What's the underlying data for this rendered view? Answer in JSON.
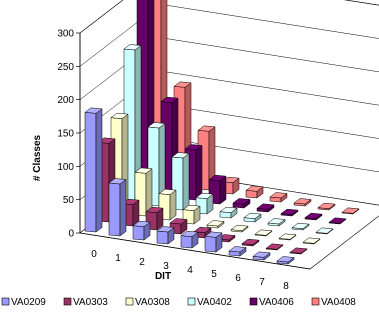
{
  "chart_data": {
    "type": "bar",
    "style": "3d-clustered-column",
    "title": "",
    "xlabel": "DIT",
    "ylabel": "# Classes",
    "ylim": [
      0,
      300
    ],
    "yticks": [
      0,
      50,
      100,
      150,
      200,
      250,
      300
    ],
    "categories": [
      "0",
      "1",
      "2",
      "3",
      "4",
      "5",
      "6",
      "7",
      "8"
    ],
    "grid": true,
    "legend_position": "bottom",
    "series": [
      {
        "name": "VA0209",
        "color": "#9999FF",
        "values": [
          178,
          78,
          20,
          18,
          17,
          22,
          6,
          4,
          3
        ]
      },
      {
        "name": "VA0303",
        "color": "#993366",
        "values": [
          118,
          32,
          26,
          15,
          8,
          3,
          2,
          1,
          1
        ]
      },
      {
        "name": "VA0308",
        "color": "#FFFFCC",
        "values": [
          140,
          64,
          38,
          20,
          3,
          2,
          1,
          1,
          1
        ]
      },
      {
        "name": "VA0402",
        "color": "#CCFFFF",
        "values": [
          228,
          117,
          78,
          23,
          8,
          5,
          3,
          2,
          1
        ]
      },
      {
        "name": "VA0406",
        "color": "#660066",
        "values": [
          292,
          140,
          75,
          35,
          6,
          4,
          2,
          2,
          1
        ]
      },
      {
        "name": "VA0408",
        "color": "#FF8080",
        "values": [
          305,
          148,
          88,
          17,
          10,
          6,
          3,
          2,
          1
        ]
      }
    ]
  }
}
